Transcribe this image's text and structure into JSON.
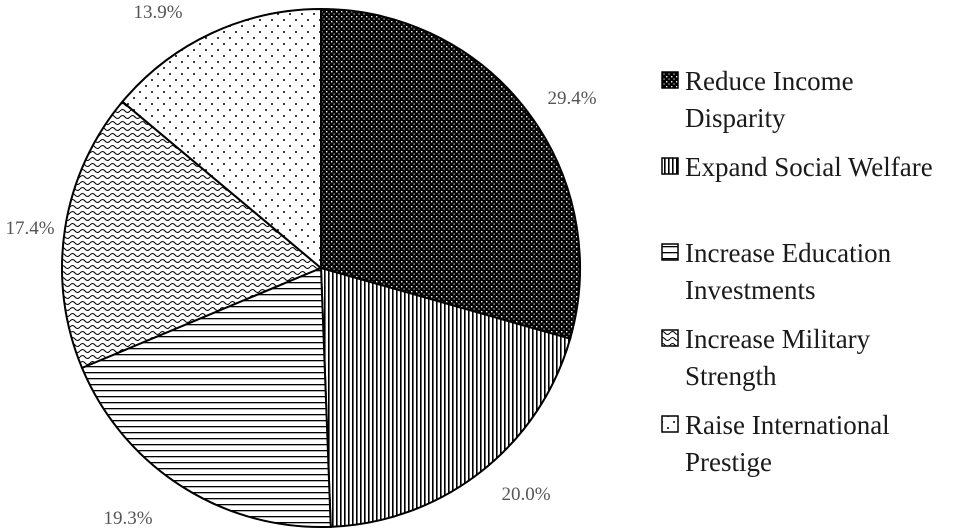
{
  "chart_data": {
    "type": "pie",
    "title": "",
    "slices": [
      {
        "label": "Reduce Income Disparity",
        "value": 29.4,
        "value_label": "29.4%",
        "pattern": "dense-dots"
      },
      {
        "label": "Expand Social Welfare",
        "value": 20.0,
        "value_label": "20.0%",
        "pattern": "vertical-lines"
      },
      {
        "label": "Increase Education Investments",
        "value": 19.3,
        "value_label": "19.3%",
        "pattern": "horizontal-lines"
      },
      {
        "label": "Increase Military Strength",
        "value": 17.4,
        "value_label": "17.4%",
        "pattern": "waves"
      },
      {
        "label": "Raise International Prestige",
        "value": 13.9,
        "value_label": "13.9%",
        "pattern": "sparse-dots"
      }
    ],
    "start_angle": "12 o'clock",
    "direction": "clockwise",
    "legend": {
      "position": "right",
      "lines": [
        [
          "Reduce Income",
          "Disparity"
        ],
        [
          "Expand Social Welfare"
        ],
        [
          "Increase Education",
          "Investments"
        ],
        [
          "Increase Military",
          "Strength"
        ],
        [
          "Raise International",
          "Prestige"
        ]
      ]
    },
    "colors": {
      "stroke": "#000000",
      "background": "#ffffff",
      "label": "#555555"
    }
  }
}
